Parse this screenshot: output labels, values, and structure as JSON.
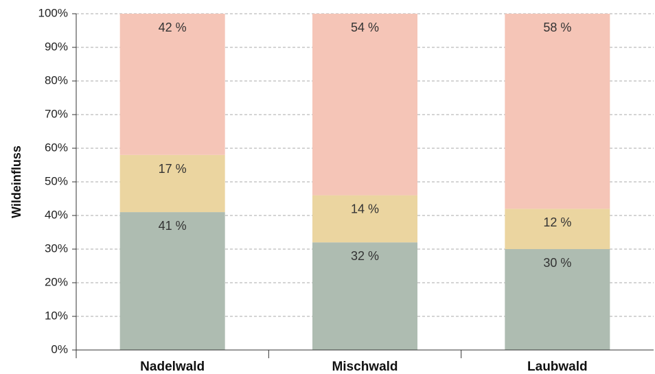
{
  "chart_data": {
    "type": "bar",
    "stacked": true,
    "title": "",
    "xlabel": "",
    "ylabel": "Wildeinfluss",
    "ylim": [
      0,
      100
    ],
    "yticks": [
      "0%",
      "10%",
      "20%",
      "30%",
      "40%",
      "50%",
      "60%",
      "70%",
      "80%",
      "90%",
      "100%"
    ],
    "categories": [
      "Nadelwald",
      "Mischwald",
      "Laubwald"
    ],
    "series": [
      {
        "values": [
          41,
          32,
          30
        ],
        "labels": [
          "41 %",
          "32 %",
          "30 %"
        ],
        "color": "#aebcb1"
      },
      {
        "values": [
          17,
          14,
          12
        ],
        "labels": [
          "17 %",
          "14 %",
          "12 %"
        ],
        "color": "#ebd5a0"
      },
      {
        "values": [
          42,
          54,
          58
        ],
        "labels": [
          "42 %",
          "54 %",
          "58 %"
        ],
        "color": "#f5c5b7"
      }
    ],
    "grid": true,
    "legend": "none"
  }
}
